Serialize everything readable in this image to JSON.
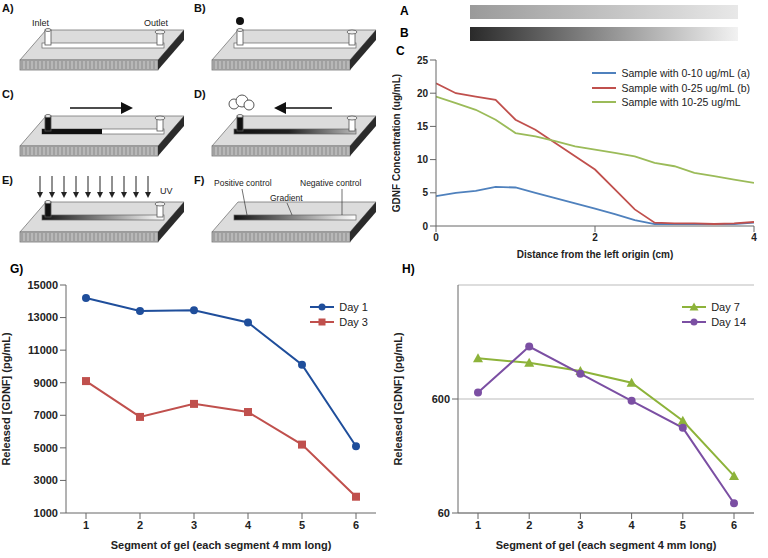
{
  "diagram": {
    "panels": [
      {
        "label": "A)",
        "texts": [
          "Inlet",
          "Outlet"
        ]
      },
      {
        "label": "B)"
      },
      {
        "label": "C)"
      },
      {
        "label": "D)"
      },
      {
        "label": "E)",
        "texts": [
          "UV"
        ]
      },
      {
        "label": "F)",
        "texts": [
          "Positive control",
          "Gradient",
          "Negative control"
        ]
      }
    ]
  },
  "gradient_strips": [
    {
      "label": "A"
    },
    {
      "label": "B"
    }
  ],
  "chart_data": [
    {
      "type": "line",
      "title": "C",
      "x_label": "Distance from the left origin (cm)",
      "y_label": "GDNF Concentration (ug/mL)",
      "x": [
        0,
        0.25,
        0.5,
        0.75,
        1,
        1.25,
        1.5,
        1.75,
        2,
        2.25,
        2.5,
        2.75,
        3,
        3.25,
        3.5,
        3.75,
        4
      ],
      "xlim": [
        0,
        4
      ],
      "xticks": [
        0,
        2,
        4
      ],
      "ylim": [
        0,
        25
      ],
      "yticks": [
        0,
        5,
        10,
        15,
        20,
        25
      ],
      "grid": false,
      "legend": "upper right",
      "series": [
        {
          "name": "Sample with 0-10 ug/mL (a)",
          "color": "#4f81bd",
          "values": [
            4.5,
            5.0,
            5.3,
            5.9,
            5.8,
            5.0,
            4.2,
            3.4,
            2.6,
            1.8,
            0.9,
            0.3,
            0.3,
            0.3,
            0.3,
            0.3,
            0.5
          ]
        },
        {
          "name": "Sample with 0-25 ug/mL (b)",
          "color": "#c0504d",
          "values": [
            21.5,
            20.0,
            19.5,
            19.0,
            16.0,
            14.5,
            12.5,
            10.5,
            8.5,
            5.5,
            2.5,
            0.5,
            0.4,
            0.4,
            0.3,
            0.4,
            0.6
          ]
        },
        {
          "name": "Sample with 10-25 ug/mL",
          "color": "#9bbb59",
          "values": [
            19.5,
            18.5,
            17.5,
            16.0,
            14.0,
            13.5,
            12.8,
            12.0,
            11.5,
            11.0,
            10.5,
            9.5,
            9.0,
            8.0,
            7.5,
            7.0,
            6.5
          ]
        }
      ]
    },
    {
      "type": "line",
      "title": "G)",
      "x_label": "Segment of gel (each segment 4 mm long)",
      "y_label": "Released [GDNF] (pg/mL)",
      "categories": [
        "1",
        "2",
        "3",
        "4",
        "5",
        "6"
      ],
      "ylim": [
        1000,
        15000
      ],
      "yticks": [
        1000,
        3000,
        5000,
        7000,
        9000,
        11000,
        13000,
        15000
      ],
      "grid": false,
      "legend": "upper right",
      "series": [
        {
          "name": "Day 1",
          "color": "#1f4e9b",
          "marker": "circle",
          "values": [
            14200,
            13400,
            13450,
            12700,
            10100,
            5100
          ]
        },
        {
          "name": "Day 3",
          "color": "#c0504d",
          "marker": "square",
          "values": [
            9100,
            6900,
            7700,
            7200,
            5200,
            2000
          ]
        }
      ]
    },
    {
      "type": "line",
      "title": "H)",
      "x_label": "Segment of gel (each segment 4 mm long)",
      "y_label": "Released [GDNF] (pg/mL)",
      "categories": [
        "1",
        "2",
        "3",
        "4",
        "5",
        "6"
      ],
      "log": "y",
      "ylim": [
        60,
        6000
      ],
      "yticks": [
        60,
        600
      ],
      "grid": true,
      "legend": "upper right",
      "series": [
        {
          "name": "Day 7",
          "color": "#8db33a",
          "marker": "triangle",
          "values": [
            1366,
            1245,
            1057,
            834,
            387,
            127
          ]
        },
        {
          "name": "Day 14",
          "color": "#7b4fa3",
          "marker": "circle",
          "values": [
            683,
            1730,
            1000,
            578,
            335,
            73
          ]
        }
      ]
    }
  ]
}
